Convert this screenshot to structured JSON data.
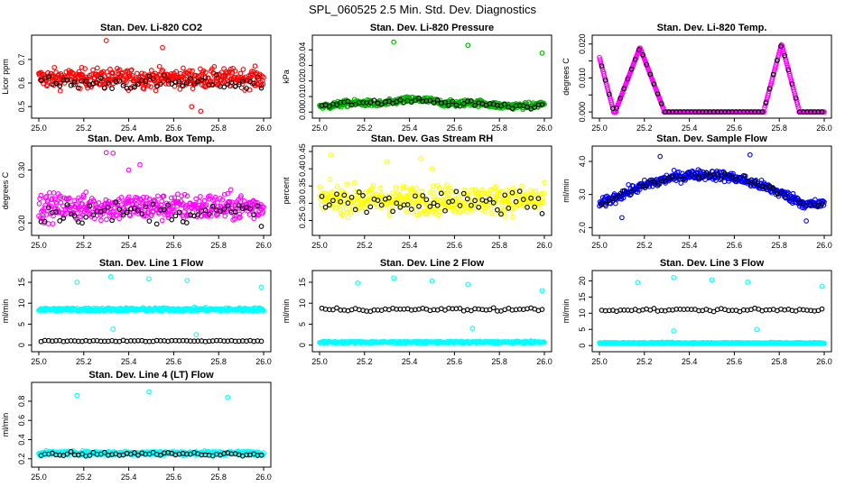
{
  "suptitle": "SPL_060525  2.5 Min. Std. Dev. Diagnostics",
  "chart_data": [
    {
      "type": "scatter",
      "title": "Stan. Dev. Li-820 CO2",
      "ylabel": "Licor ppm",
      "xlim": [
        25.0,
        26.0
      ],
      "ylim": [
        0.47,
        0.78
      ],
      "yticks": [
        0.5,
        0.6,
        0.7
      ],
      "ytick_labels": [
        "0.5",
        "0.6",
        "0.7"
      ],
      "color": "#ff0000",
      "pattern": "flat",
      "base": 0.62,
      "noise": 0.04,
      "highlight_base": 0.6,
      "highlight_noise": 0.03,
      "outliers": [
        [
          25.3,
          0.78
        ],
        [
          25.68,
          0.5
        ],
        [
          25.55,
          0.75
        ],
        [
          25.72,
          0.48
        ]
      ],
      "xticks": [
        25.0,
        25.2,
        25.4,
        25.6,
        25.8,
        26.0
      ],
      "xtick_labels": [
        "25.0",
        "25.2",
        "25.4",
        "25.6",
        "25.8",
        "26.0"
      ]
    },
    {
      "type": "scatter",
      "title": "Stan. Dev. Li-820 Pressure",
      "ylabel": "kPa",
      "xlim": [
        25.0,
        26.0
      ],
      "ylim": [
        -0.001,
        0.046
      ],
      "yticks": [
        0.0,
        0.01,
        0.02,
        0.03,
        0.04
      ],
      "ytick_labels": [
        "0.00",
        "0.01",
        "0.02",
        "0.03",
        "0.04"
      ],
      "color": "#00b000",
      "pattern": "wave",
      "base": 0.004,
      "noise": 0.002,
      "highlight_base": 0.004,
      "highlight_noise": 0.0015,
      "outliers": [
        [
          25.33,
          0.045
        ],
        [
          25.66,
          0.043
        ],
        [
          25.99,
          0.038
        ]
      ],
      "xticks": [
        25.0,
        25.2,
        25.4,
        25.6,
        25.8,
        26.0
      ],
      "xtick_labels": [
        "25.0",
        "25.2",
        "25.4",
        "25.6",
        "25.8",
        "26.0"
      ]
    },
    {
      "type": "scatter",
      "title": "Stan. Dev. Li-820 Temp.",
      "ylabel": "degrees C",
      "xlim": [
        25.0,
        26.0
      ],
      "ylim": [
        -0.0005,
        0.021
      ],
      "yticks": [
        0.0,
        0.005,
        0.01,
        0.015,
        0.02
      ],
      "ytick_labels": [
        "0.000",
        "",
        "0.010",
        "",
        "0.020"
      ],
      "color": "#ff00ff",
      "pattern": "peaks",
      "base": 0.0,
      "noise": 0.0,
      "highlight_base": 0.0,
      "highlight_noise": 0.0,
      "outliers": [],
      "xticks": [
        25.0,
        25.2,
        25.4,
        25.6,
        25.8,
        26.0
      ],
      "xtick_labels": [
        "25.0",
        "25.2",
        "25.4",
        "25.6",
        "25.8",
        "26.0"
      ]
    },
    {
      "type": "scatter",
      "title": "Stan. Dev. Amb. Box Temp.",
      "ylabel": "degrees C",
      "xlim": [
        25.0,
        26.0
      ],
      "ylim": [
        0.185,
        0.335
      ],
      "yticks": [
        0.2,
        0.3
      ],
      "ytick_labels": [
        "0.20",
        "0.30"
      ],
      "color": "#ff00ff",
      "pattern": "flat",
      "base": 0.23,
      "noise": 0.025,
      "highlight_base": 0.22,
      "highlight_noise": 0.02,
      "outliers": [
        [
          25.3,
          0.333
        ],
        [
          25.33,
          0.332
        ],
        [
          25.45,
          0.31
        ],
        [
          25.4,
          0.3
        ]
      ],
      "xticks": [
        25.0,
        25.2,
        25.4,
        25.6,
        25.8,
        26.0
      ],
      "xtick_labels": [
        "25.0",
        "25.2",
        "25.4",
        "25.6",
        "25.8",
        "26.0"
      ]
    },
    {
      "type": "scatter",
      "title": "Stan. Dev. Gas Stream RH",
      "ylabel": "percent",
      "xlim": [
        25.0,
        26.0
      ],
      "ylim": [
        0.22,
        0.45
      ],
      "yticks": [
        0.25,
        0.3,
        0.35,
        0.4,
        0.45
      ],
      "ytick_labels": [
        "0.25",
        "0.30",
        "0.35",
        "0.40",
        "0.45"
      ],
      "color": "#ffff00",
      "pattern": "flat",
      "base": 0.31,
      "noise": 0.04,
      "highlight_base": 0.3,
      "highlight_noise": 0.035,
      "outliers": [
        [
          25.05,
          0.44
        ],
        [
          25.45,
          0.43
        ],
        [
          25.3,
          0.42
        ],
        [
          25.5,
          0.4
        ]
      ],
      "xticks": [
        25.0,
        25.2,
        25.4,
        25.6,
        25.8,
        26.0
      ],
      "xtick_labels": [
        "25.0",
        "25.2",
        "25.4",
        "25.6",
        "25.8",
        "26.0"
      ]
    },
    {
      "type": "scatter",
      "title": "Stan. Dev. Sample Flow",
      "ylabel": "ml/min",
      "xlim": [
        25.0,
        26.0
      ],
      "ylim": [
        1.9,
        4.3
      ],
      "yticks": [
        2.0,
        3.0,
        4.0
      ],
      "ytick_labels": [
        "2.0",
        "3.0",
        "4.0"
      ],
      "color": "#0000ff",
      "pattern": "arch",
      "base": 2.7,
      "noise": 0.15,
      "highlight_base": 2.7,
      "highlight_noise": 0.1,
      "outliers": [
        [
          25.27,
          4.15
        ],
        [
          25.67,
          4.2
        ],
        [
          25.1,
          2.3
        ],
        [
          25.92,
          2.2
        ]
      ],
      "xticks": [
        25.0,
        25.2,
        25.4,
        25.6,
        25.8,
        26.0
      ],
      "xtick_labels": [
        "25.0",
        "25.2",
        "25.4",
        "25.6",
        "25.8",
        "26.0"
      ]
    },
    {
      "type": "scatter",
      "title": "Stan. Dev. Line 1 Flow",
      "ylabel": "ml/min",
      "xlim": [
        25.0,
        26.0
      ],
      "ylim": [
        -0.5,
        16.5
      ],
      "yticks": [
        0,
        5,
        10,
        15
      ],
      "ytick_labels": [
        "0",
        "5",
        "10",
        "15"
      ],
      "color": "#00ffff",
      "pattern": "flat",
      "base": 8.5,
      "noise": 0.4,
      "highlight_base": 1.0,
      "highlight_noise": 0.15,
      "outliers": [
        [
          25.17,
          15.0
        ],
        [
          25.32,
          16.3
        ],
        [
          25.49,
          15.8
        ],
        [
          25.66,
          15.4
        ],
        [
          25.99,
          13.8
        ],
        [
          25.33,
          3.8
        ],
        [
          25.7,
          2.5
        ]
      ],
      "xticks": [
        25.0,
        25.2,
        25.4,
        25.6,
        25.8,
        26.0
      ],
      "xtick_labels": [
        "25.0",
        "25.2",
        "25.4",
        "25.6",
        "25.8",
        "26.0"
      ]
    },
    {
      "type": "scatter",
      "title": "Stan. Dev. Line 2 Flow",
      "ylabel": "ml/min",
      "xlim": [
        25.0,
        26.0
      ],
      "ylim": [
        -0.5,
        16.5
      ],
      "yticks": [
        0,
        5,
        10,
        15
      ],
      "ytick_labels": [
        "0",
        "5",
        "10",
        "15"
      ],
      "color": "#00ffff",
      "pattern": "flat",
      "base": 0.7,
      "noise": 0.2,
      "highlight_base": 8.5,
      "highlight_noise": 0.4,
      "outliers": [
        [
          25.17,
          14.8
        ],
        [
          25.33,
          16.0
        ],
        [
          25.5,
          15.3
        ],
        [
          25.66,
          14.5
        ],
        [
          25.99,
          13.0
        ],
        [
          25.68,
          4.0
        ]
      ],
      "xticks": [
        25.0,
        25.2,
        25.4,
        25.6,
        25.8,
        26.0
      ],
      "xtick_labels": [
        "25.0",
        "25.2",
        "25.4",
        "25.6",
        "25.8",
        "26.0"
      ]
    },
    {
      "type": "scatter",
      "title": "Stan. Dev. Line 3 Flow",
      "ylabel": "ml/min",
      "xlim": [
        25.0,
        26.0
      ],
      "ylim": [
        -0.5,
        21.5
      ],
      "yticks": [
        0,
        5,
        10,
        15,
        20
      ],
      "ytick_labels": [
        "0",
        "5",
        "10",
        "15",
        "20"
      ],
      "color": "#00ffff",
      "pattern": "flat",
      "base": 0.8,
      "noise": 0.2,
      "highlight_base": 11.0,
      "highlight_noise": 0.5,
      "outliers": [
        [
          25.17,
          19.5
        ],
        [
          25.33,
          21.0
        ],
        [
          25.5,
          20.3
        ],
        [
          25.66,
          19.6
        ],
        [
          25.99,
          18.3
        ],
        [
          25.33,
          4.5
        ],
        [
          25.7,
          5.0
        ]
      ],
      "xticks": [
        25.0,
        25.2,
        25.4,
        25.6,
        25.8,
        26.0
      ],
      "xtick_labels": [
        "25.0",
        "25.2",
        "25.4",
        "25.6",
        "25.8",
        "26.0"
      ]
    },
    {
      "type": "scatter",
      "title": "Stan. Dev. Line 4 (LT) Flow",
      "ylabel": "ml/min",
      "xlim": [
        25.0,
        26.0
      ],
      "ylim": [
        0.16,
        0.94
      ],
      "yticks": [
        0.2,
        0.4,
        0.6,
        0.8
      ],
      "ytick_labels": [
        "0.2",
        "0.4",
        "0.6",
        "0.8"
      ],
      "color": "#00ffff",
      "pattern": "flat",
      "base": 0.26,
      "noise": 0.02,
      "highlight_base": 0.25,
      "highlight_noise": 0.02,
      "outliers": [
        [
          25.17,
          0.86
        ],
        [
          25.49,
          0.9
        ],
        [
          25.84,
          0.84
        ]
      ],
      "xticks": [
        25.0,
        25.2,
        25.4,
        25.6,
        25.8,
        26.0
      ],
      "xtick_labels": [
        "25.0",
        "25.2",
        "25.4",
        "25.6",
        "25.8",
        "26.0"
      ]
    }
  ]
}
